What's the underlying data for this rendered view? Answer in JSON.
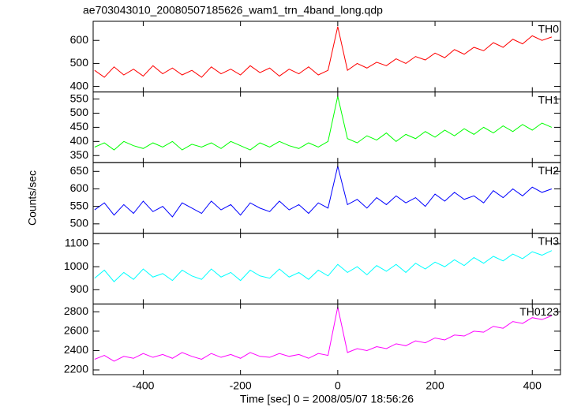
{
  "title": "ae703043010_20080507185626_wam1_trn_4band_long.qdp",
  "xlabel": "Time [sec] 0 = 2008/05/07 18:56:26",
  "ylabel": "Counts/sec",
  "chart_data": [
    {
      "type": "line",
      "x": [
        -500,
        -480,
        -460,
        -440,
        -420,
        -400,
        -380,
        -360,
        -340,
        -320,
        -300,
        -280,
        -260,
        -240,
        -220,
        -200,
        -180,
        -160,
        -140,
        -120,
        -100,
        -80,
        -60,
        -40,
        -20,
        0,
        20,
        40,
        60,
        80,
        100,
        120,
        140,
        160,
        180,
        200,
        220,
        240,
        260,
        280,
        300,
        320,
        340,
        360,
        380,
        400,
        420,
        440
      ],
      "series": [
        {
          "name": "TH0",
          "color": "#ff0000",
          "values": [
            470,
            440,
            485,
            450,
            475,
            445,
            490,
            455,
            480,
            450,
            470,
            440,
            485,
            455,
            475,
            450,
            490,
            460,
            480,
            445,
            475,
            455,
            485,
            450,
            470,
            660,
            470,
            500,
            480,
            505,
            490,
            520,
            500,
            530,
            515,
            545,
            525,
            560,
            540,
            570,
            555,
            590,
            570,
            605,
            585,
            620,
            600,
            615
          ]
        }
      ],
      "xlim": [
        -503,
        458
      ],
      "xticks": [
        -400,
        -200,
        0,
        200,
        400
      ],
      "ylim": [
        376,
        683
      ],
      "yticks": [
        400,
        500,
        600
      ]
    },
    {
      "type": "line",
      "x": [
        -500,
        -480,
        -460,
        -440,
        -420,
        -400,
        -380,
        -360,
        -340,
        -320,
        -300,
        -280,
        -260,
        -240,
        -220,
        -200,
        -180,
        -160,
        -140,
        -120,
        -100,
        -80,
        -60,
        -40,
        -20,
        0,
        20,
        40,
        60,
        80,
        100,
        120,
        140,
        160,
        180,
        200,
        220,
        240,
        260,
        280,
        300,
        320,
        340,
        360,
        380,
        400,
        420,
        440
      ],
      "series": [
        {
          "name": "TH1",
          "color": "#00ff00",
          "values": [
            380,
            395,
            370,
            400,
            385,
            375,
            395,
            380,
            400,
            370,
            390,
            380,
            395,
            375,
            400,
            385,
            370,
            395,
            380,
            400,
            385,
            375,
            395,
            380,
            400,
            560,
            410,
            395,
            420,
            405,
            430,
            400,
            425,
            410,
            435,
            415,
            440,
            420,
            445,
            425,
            450,
            430,
            455,
            435,
            460,
            440,
            465,
            450
          ]
        }
      ],
      "xlim": [
        -503,
        458
      ],
      "xticks": [
        -400,
        -200,
        0,
        200,
        400
      ],
      "ylim": [
        325,
        575
      ],
      "yticks": [
        350,
        400,
        450,
        500,
        550
      ]
    },
    {
      "type": "line",
      "x": [
        -500,
        -480,
        -460,
        -440,
        -420,
        -400,
        -380,
        -360,
        -340,
        -320,
        -300,
        -280,
        -260,
        -240,
        -220,
        -200,
        -180,
        -160,
        -140,
        -120,
        -100,
        -80,
        -60,
        -40,
        -20,
        0,
        20,
        40,
        60,
        80,
        100,
        120,
        140,
        160,
        180,
        200,
        220,
        240,
        260,
        280,
        300,
        320,
        340,
        360,
        380,
        400,
        420,
        440
      ],
      "series": [
        {
          "name": "TH2",
          "color": "#0000ff",
          "values": [
            540,
            560,
            525,
            555,
            530,
            565,
            535,
            550,
            520,
            560,
            545,
            530,
            565,
            540,
            555,
            525,
            560,
            545,
            535,
            565,
            540,
            555,
            530,
            560,
            545,
            665,
            555,
            570,
            545,
            575,
            555,
            580,
            560,
            575,
            550,
            585,
            565,
            590,
            570,
            580,
            560,
            595,
            575,
            600,
            580,
            605,
            590,
            600
          ]
        }
      ],
      "xlim": [
        -503,
        458
      ],
      "xticks": [
        -400,
        -200,
        0,
        200,
        400
      ],
      "ylim": [
        473,
        675
      ],
      "yticks": [
        500,
        550,
        600,
        650
      ]
    },
    {
      "type": "line",
      "x": [
        -500,
        -480,
        -460,
        -440,
        -420,
        -400,
        -380,
        -360,
        -340,
        -320,
        -300,
        -280,
        -260,
        -240,
        -220,
        -200,
        -180,
        -160,
        -140,
        -120,
        -100,
        -80,
        -60,
        -40,
        -20,
        0,
        20,
        40,
        60,
        80,
        100,
        120,
        140,
        160,
        180,
        200,
        220,
        240,
        260,
        280,
        300,
        320,
        340,
        360,
        380,
        400,
        420,
        440
      ],
      "series": [
        {
          "name": "TH3",
          "color": "#00ffff",
          "values": [
            950,
            985,
            935,
            975,
            945,
            990,
            955,
            970,
            940,
            985,
            960,
            945,
            990,
            955,
            975,
            940,
            985,
            960,
            950,
            990,
            955,
            975,
            945,
            985,
            960,
            1010,
            975,
            1000,
            965,
            1005,
            980,
            1010,
            975,
            1015,
            990,
            1020,
            1000,
            1030,
            1005,
            1040,
            1015,
            1045,
            1025,
            1055,
            1035,
            1065,
            1050,
            1070
          ]
        }
      ],
      "xlim": [
        -503,
        458
      ],
      "xticks": [
        -400,
        -200,
        0,
        200,
        400
      ],
      "ylim": [
        838,
        1145
      ],
      "yticks": [
        900,
        1000,
        1100
      ]
    },
    {
      "type": "line",
      "x": [
        -500,
        -480,
        -460,
        -440,
        -420,
        -400,
        -380,
        -360,
        -340,
        -320,
        -300,
        -280,
        -260,
        -240,
        -220,
        -200,
        -180,
        -160,
        -140,
        -120,
        -100,
        -80,
        -60,
        -40,
        -20,
        0,
        20,
        40,
        60,
        80,
        100,
        120,
        140,
        160,
        180,
        200,
        220,
        240,
        260,
        280,
        300,
        320,
        340,
        360,
        380,
        400,
        420,
        440
      ],
      "series": [
        {
          "name": "TH0123",
          "color": "#ff00ff",
          "values": [
            2310,
            2350,
            2290,
            2340,
            2320,
            2370,
            2330,
            2360,
            2320,
            2380,
            2340,
            2310,
            2370,
            2330,
            2360,
            2320,
            2380,
            2340,
            2330,
            2370,
            2340,
            2360,
            2320,
            2370,
            2350,
            2850,
            2380,
            2420,
            2400,
            2440,
            2420,
            2470,
            2450,
            2500,
            2480,
            2530,
            2510,
            2560,
            2550,
            2600,
            2590,
            2650,
            2630,
            2700,
            2680,
            2740,
            2720,
            2760
          ]
        }
      ],
      "xlim": [
        -503,
        458
      ],
      "xticks": [
        -400,
        -200,
        0,
        200,
        400
      ],
      "ylim": [
        2151,
        2881
      ],
      "yticks": [
        2200,
        2400,
        2600,
        2800
      ]
    }
  ]
}
